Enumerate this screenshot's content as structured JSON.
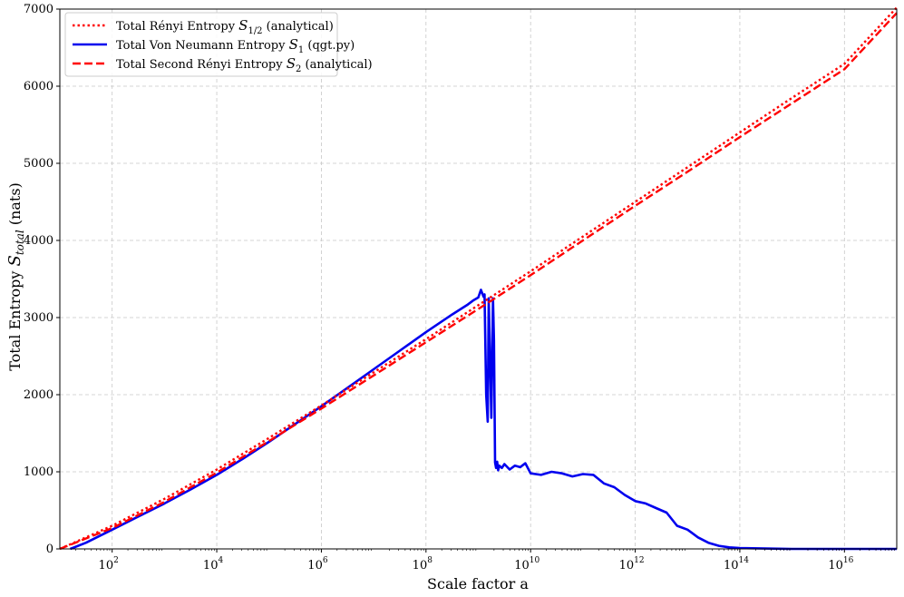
{
  "chart_data": {
    "type": "line",
    "xlabel": "Scale factor a",
    "ylabel": "Total Entropy S_total (nats)",
    "xscale": "log",
    "xlim": [
      10,
      1e+17
    ],
    "ylim": [
      0,
      7000
    ],
    "grid": true,
    "legend_position": "top-left",
    "y_ticks": [
      "0",
      "1000",
      "2000",
      "3000",
      "4000",
      "5000",
      "6000",
      "7000"
    ],
    "x_ticks": [
      {
        "base": "10",
        "exp": "2",
        "value": 100
      },
      {
        "base": "10",
        "exp": "4",
        "value": 10000
      },
      {
        "base": "10",
        "exp": "6",
        "value": 1000000
      },
      {
        "base": "10",
        "exp": "8",
        "value": 100000000
      },
      {
        "base": "10",
        "exp": "10",
        "value": 10000000000
      },
      {
        "base": "10",
        "exp": "12",
        "value": 1000000000000
      },
      {
        "base": "10",
        "exp": "14",
        "value": 100000000000000
      },
      {
        "base": "10",
        "exp": "16",
        "value": 10000000000000000
      }
    ],
    "series": [
      {
        "name_prefix": "Total Rényi Entropy ",
        "name_math": "S",
        "name_sub": "1/2",
        "name_suffix": " (analytical)",
        "color": "#ff0000",
        "style": "dotted",
        "x_log10": [
          1,
          2,
          3,
          4,
          5,
          6,
          7,
          8,
          9,
          10,
          11,
          12,
          13,
          14,
          15,
          16,
          17
        ],
        "y": [
          0,
          300,
          650,
          1030,
          1440,
          1860,
          2290,
          2720,
          3160,
          3600,
          4050,
          4500,
          4950,
          5400,
          5850,
          6290,
          7020
        ]
      },
      {
        "name_prefix": "Total Von Neumann Entropy ",
        "name_math": "S",
        "name_sub": "1",
        "name_suffix": " (qgt.py)",
        "color": "#0000ee",
        "style": "solid",
        "x_log10": [
          1.2,
          1.5,
          2,
          2.5,
          3,
          3.5,
          4,
          4.5,
          5,
          5.5,
          6,
          6.5,
          7,
          7.5,
          8,
          8.5,
          8.8,
          8.9,
          9.0,
          9.05,
          9.1,
          9.12,
          9.15,
          9.18,
          9.2,
          9.25,
          9.28,
          9.3,
          9.32,
          9.34,
          9.36,
          9.38,
          9.4,
          9.45,
          9.5,
          9.6,
          9.7,
          9.8,
          9.9,
          10.0,
          10.2,
          10.4,
          10.6,
          10.8,
          11.0,
          11.2,
          11.4,
          11.6,
          11.8,
          12.0,
          12.2,
          12.4,
          12.6,
          12.8,
          13.0,
          13.2,
          13.4,
          13.6,
          13.8,
          14.0,
          14.5,
          15,
          15.5,
          16,
          16.5,
          17
        ],
        "y": [
          0,
          80,
          250,
          420,
          590,
          770,
          960,
          1170,
          1390,
          1620,
          1850,
          2090,
          2330,
          2570,
          2810,
          3040,
          3170,
          3220,
          3260,
          3360,
          3270,
          3300,
          2000,
          1650,
          3250,
          1700,
          3250,
          2700,
          1120,
          1050,
          1130,
          1020,
          1080,
          1050,
          1100,
          1030,
          1080,
          1060,
          1110,
          980,
          960,
          1000,
          980,
          940,
          970,
          960,
          850,
          800,
          700,
          620,
          590,
          530,
          470,
          300,
          250,
          150,
          80,
          40,
          20,
          10,
          5,
          0,
          0,
          0,
          0,
          0
        ]
      },
      {
        "name_prefix": "Total Second Rényi Entropy ",
        "name_math": "S",
        "name_sub": "2",
        "name_suffix": " (analytical)",
        "color": "#ff0000",
        "style": "dashed",
        "x_log10": [
          1,
          2,
          3,
          4,
          5,
          6,
          7,
          8,
          9,
          10,
          11,
          12,
          13,
          14,
          15,
          16,
          17
        ],
        "y": [
          0,
          270,
          610,
          990,
          1400,
          1820,
          2250,
          2680,
          3110,
          3550,
          4000,
          4450,
          4890,
          5340,
          5780,
          6220,
          6950
        ]
      }
    ]
  }
}
